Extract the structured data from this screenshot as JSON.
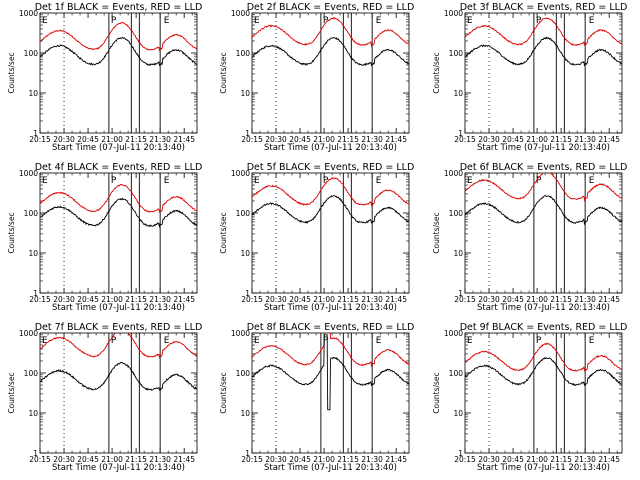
{
  "chart_data": {
    "type": "line",
    "layout": "3x3 panel grid",
    "panels": [
      {
        "title": "Det 1f BLACK = Events, RED = LLD",
        "events_at_start": 80,
        "lld_at_start": 190,
        "spike": false
      },
      {
        "title": "Det 2f BLACK = Events, RED = LLD",
        "events_at_start": 80,
        "lld_at_start": 250,
        "spike": false
      },
      {
        "title": "Det 3f BLACK = Events, RED = LLD",
        "events_at_start": 80,
        "lld_at_start": 250,
        "spike": false
      },
      {
        "title": "Det 4f BLACK = Events, RED = LLD",
        "events_at_start": 75,
        "lld_at_start": 170,
        "spike": false
      },
      {
        "title": "Det 5f BLACK = Events, RED = LLD",
        "events_at_start": 90,
        "lld_at_start": 250,
        "spike": false
      },
      {
        "title": "Det 6f BLACK = Events, RED = LLD",
        "events_at_start": 90,
        "lld_at_start": 350,
        "spike": false
      },
      {
        "title": "Det 7f BLACK = Events, RED = LLD",
        "events_at_start": 60,
        "lld_at_start": 400,
        "spike": false
      },
      {
        "title": "Det 8f BLACK = Events, RED = LLD",
        "events_at_start": 80,
        "lld_at_start": 250,
        "spike": true
      },
      {
        "title": "Det 9f BLACK = Events, RED = LLD",
        "events_at_start": 80,
        "lld_at_start": 180,
        "spike": false
      }
    ],
    "xlabel": "Start Time (07-Jul-11 20:13:40)",
    "ylabel": "Counts/sec",
    "x_tick_labels": [
      "20:15",
      "20:30",
      "20:45",
      "21:00",
      "21:15",
      "21:30",
      "21:45"
    ],
    "x_tick_minutes": [
      15,
      30,
      45,
      60,
      75,
      90,
      105
    ],
    "xlim_minutes": [
      15,
      113
    ],
    "y_scale": "log",
    "ylim": [
      1,
      1000
    ],
    "y_tick_labels": [
      "1",
      "10",
      "100",
      "1000"
    ],
    "dotted_marker_minute": 30,
    "solid_marker_minutes": [
      58,
      72,
      77,
      90
    ],
    "region_labels": [
      {
        "text": "E",
        "at_minute": 15
      },
      {
        "text": "P",
        "at_minute": 58
      },
      {
        "text": "E",
        "at_minute": 91
      }
    ],
    "series": [
      {
        "name": "Events",
        "color": "#000000"
      },
      {
        "name": "LLD",
        "color": "#e00000"
      }
    ]
  }
}
